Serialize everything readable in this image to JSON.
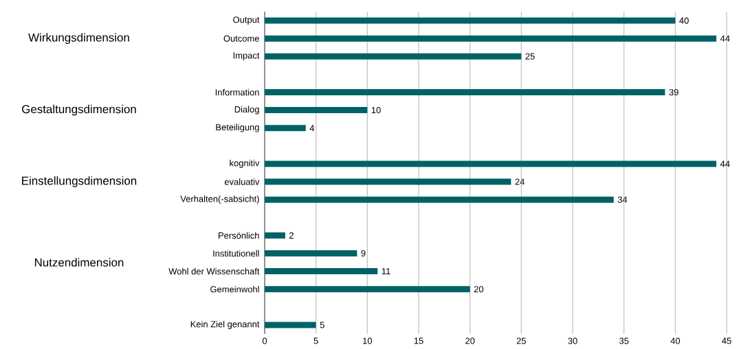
{
  "chart_data": {
    "type": "bar",
    "orientation": "horizontal",
    "categories": [
      "Output",
      "Outcome",
      "Impact",
      null,
      "Information",
      "Dialog",
      "Beteiligung",
      null,
      "kognitiv",
      "evaluativ",
      "Verhalten(-sabsicht)",
      null,
      "Persönlich",
      "Institutionell",
      "Wohl der Wissenschaft",
      "Gemeinwohl",
      null,
      "Kein Ziel genannt"
    ],
    "values": [
      40,
      44,
      25,
      null,
      39,
      10,
      4,
      null,
      44,
      24,
      34,
      null,
      2,
      9,
      11,
      20,
      null,
      5
    ],
    "color": "#006266",
    "data_labels": true,
    "grid": "x",
    "xlim": [
      0,
      45
    ],
    "xticks": [
      0,
      5,
      10,
      15,
      20,
      25,
      30,
      35,
      40,
      45
    ],
    "annotations": [
      "Wirkungsdimension",
      "Gestaltungsdimension",
      "Einstellungsdimension",
      "Nutzendimension"
    ]
  }
}
